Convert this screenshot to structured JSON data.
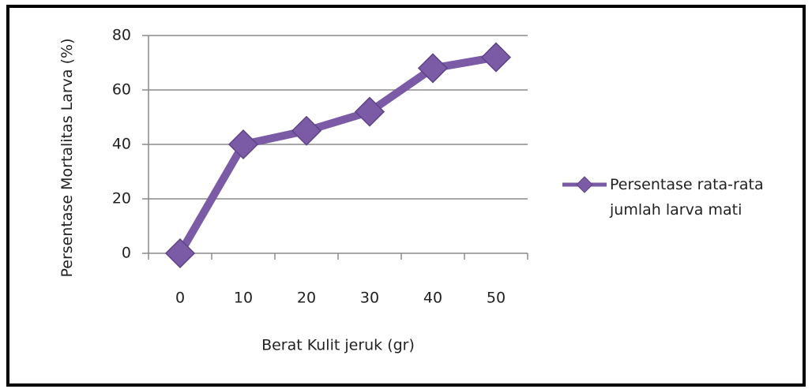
{
  "chart_data": {
    "type": "line",
    "x_label": "Berat Kulit  jeruk (gr)",
    "y_label": "Persentase Mortalitas Larva (%)",
    "categories": [
      "0",
      "10",
      "20",
      "30",
      "40",
      "50"
    ],
    "series": [
      {
        "name": "Persentase rata-rata jumlah larva mati",
        "color": "#7b5aa6",
        "values": [
          0,
          40,
          45,
          52,
          68,
          72
        ]
      }
    ],
    "ylim": [
      0,
      80
    ],
    "yticks": [
      0,
      20,
      40,
      60,
      80
    ],
    "grid": true,
    "legend": "right"
  }
}
